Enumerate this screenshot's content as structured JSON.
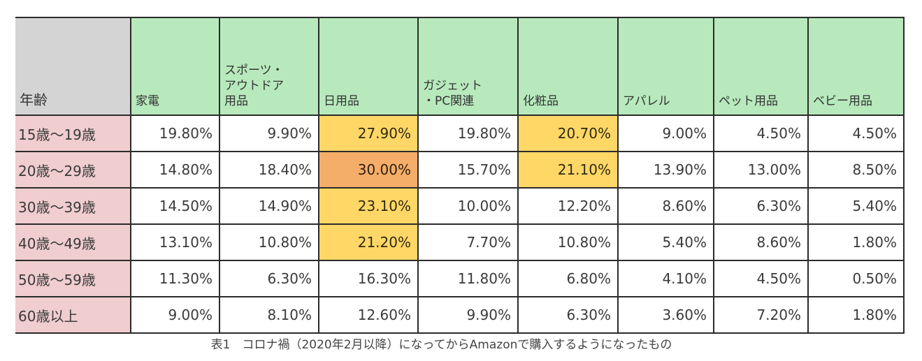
{
  "table": {
    "corner_header": "年齢",
    "columns": [
      {
        "label_lines": [
          "家電"
        ]
      },
      {
        "label_lines": [
          "スポーツ・",
          "アウトドア",
          "用品"
        ]
      },
      {
        "label_lines": [
          "日用品"
        ]
      },
      {
        "label_lines": [
          "ガジェット",
          "・PC関連"
        ]
      },
      {
        "label_lines": [
          "化粧品"
        ]
      },
      {
        "label_lines": [
          "アパレル"
        ]
      },
      {
        "label_lines": [
          "ペット用品"
        ]
      },
      {
        "label_lines": [
          "ベビー用品"
        ]
      }
    ],
    "rows": [
      {
        "age": "15歳～19歳",
        "values": [
          "19.80%",
          "9.90%",
          "27.90%",
          "19.80%",
          "20.70%",
          "9.00%",
          "4.50%",
          "4.50%"
        ],
        "highlights": [
          "",
          "",
          "yellow",
          "",
          "yellow",
          "",
          "",
          ""
        ]
      },
      {
        "age": "20歳～29歳",
        "values": [
          "14.80%",
          "18.40%",
          "30.00%",
          "15.70%",
          "21.10%",
          "13.90%",
          "13.00%",
          "8.50%"
        ],
        "highlights": [
          "",
          "",
          "orange",
          "",
          "yellow",
          "",
          "",
          ""
        ]
      },
      {
        "age": "30歳～39歳",
        "values": [
          "14.50%",
          "14.90%",
          "23.10%",
          "10.00%",
          "12.20%",
          "8.60%",
          "6.30%",
          "5.40%"
        ],
        "highlights": [
          "",
          "",
          "yellow",
          "",
          "",
          "",
          "",
          ""
        ]
      },
      {
        "age": "40歳～49歳",
        "values": [
          "13.10%",
          "10.80%",
          "21.20%",
          "7.70%",
          "10.80%",
          "5.40%",
          "8.60%",
          "1.80%"
        ],
        "highlights": [
          "",
          "",
          "yellow",
          "",
          "",
          "",
          "",
          ""
        ]
      },
      {
        "age": "50歳～59歳",
        "values": [
          "11.30%",
          "6.30%",
          "16.30%",
          "11.80%",
          "6.80%",
          "4.10%",
          "4.50%",
          "0.50%"
        ],
        "highlights": [
          "",
          "",
          "",
          "",
          "",
          "",
          "",
          ""
        ]
      },
      {
        "age": "60歳以上",
        "values": [
          "9.00%",
          "8.10%",
          "12.60%",
          "9.90%",
          "6.30%",
          "3.60%",
          "7.20%",
          "1.80%"
        ],
        "highlights": [
          "",
          "",
          "",
          "",
          "",
          "",
          "",
          ""
        ]
      }
    ]
  },
  "caption": "表1　コロナ禍（2020年2月以降）になってからAmazonで購入するようになったもの",
  "colors": {
    "age_header_bg": "#d4d4d4",
    "category_header_bg": "#b7e9bc",
    "age_cell_bg": "#f0cdcf",
    "highlight_yellow": "#ffd766",
    "highlight_orange": "#f5ae6a"
  }
}
